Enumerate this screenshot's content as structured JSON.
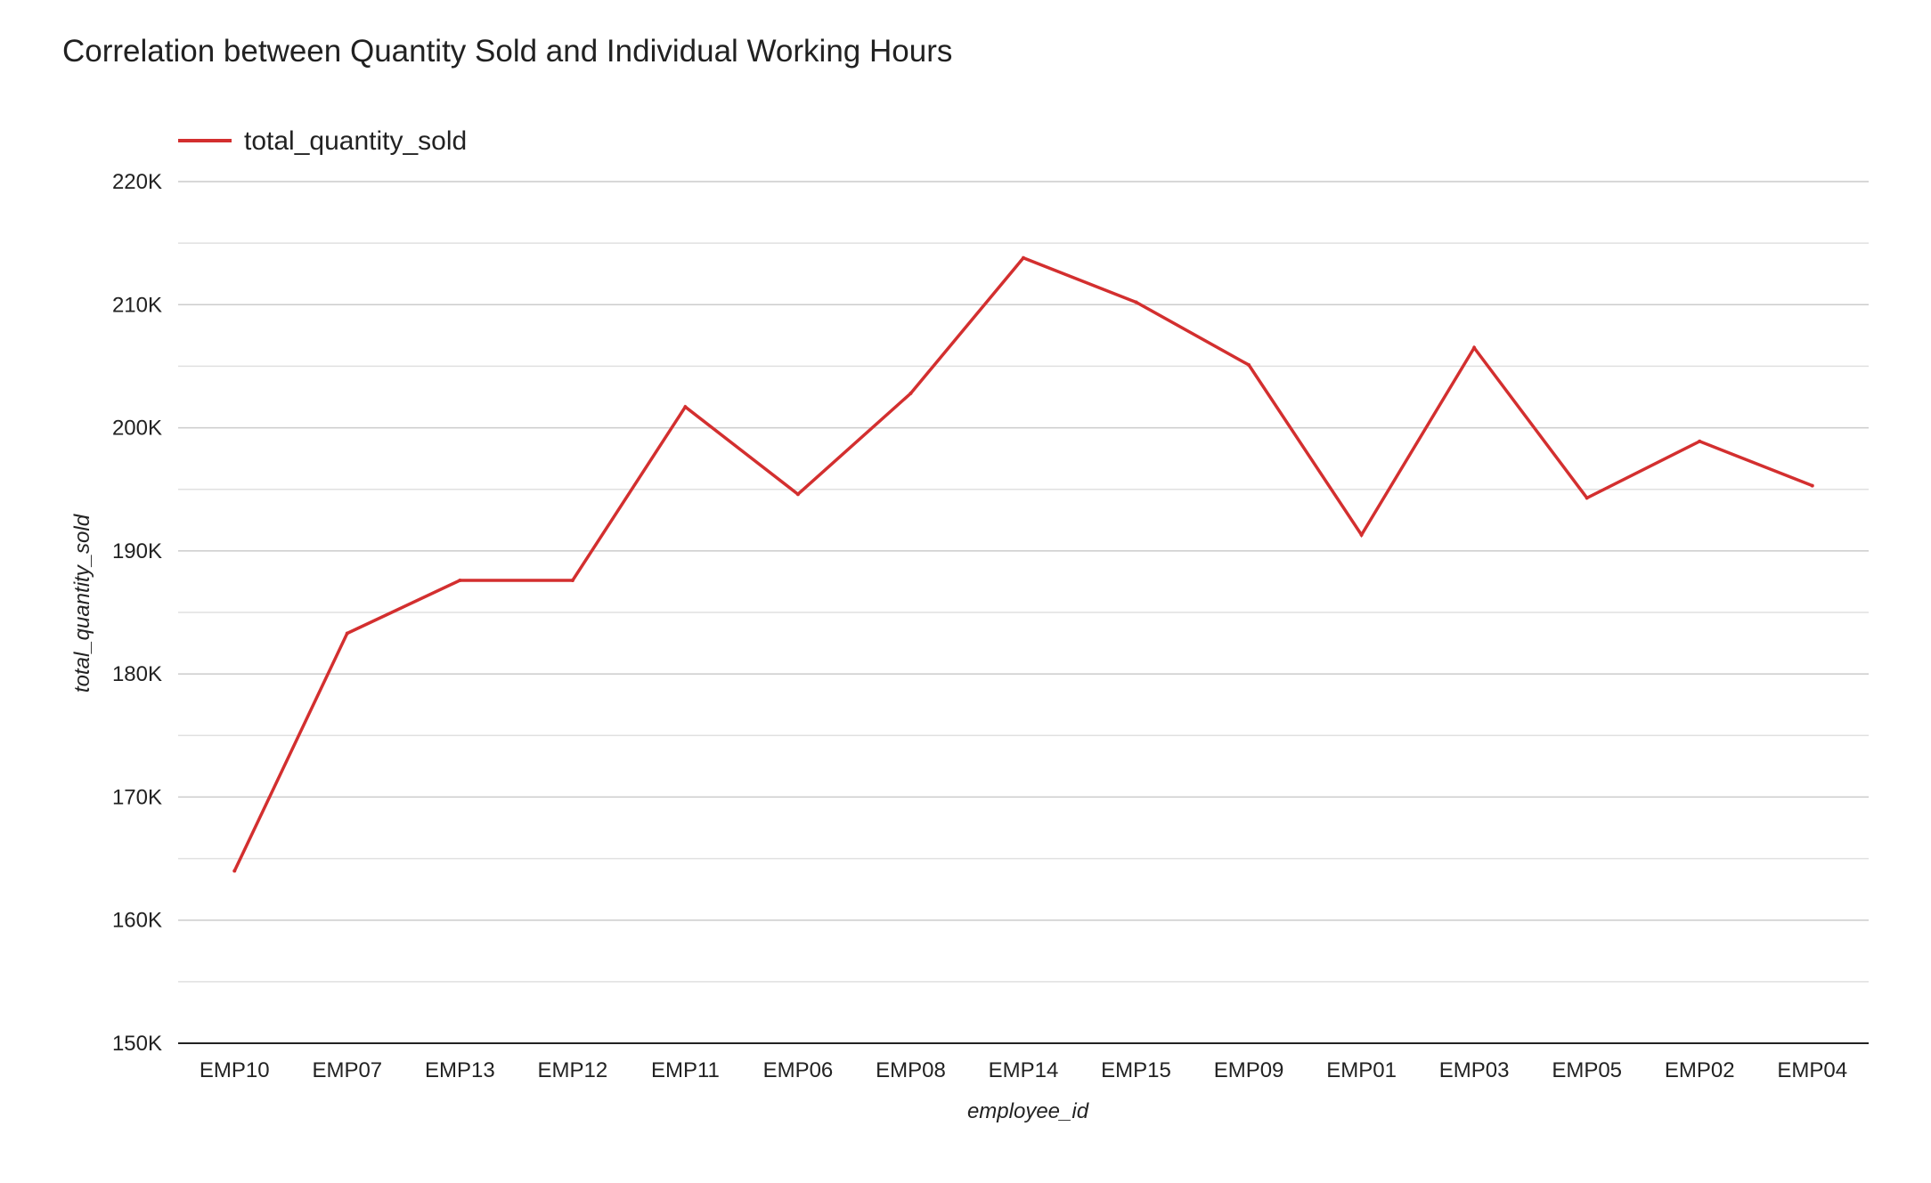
{
  "chart_data": {
    "type": "line",
    "title": "Correlation between Quantity Sold and Individual Working Hours",
    "xlabel": "employee_id",
    "ylabel": "total_quantity_sold",
    "categories": [
      "EMP10",
      "EMP07",
      "EMP13",
      "EMP12",
      "EMP11",
      "EMP06",
      "EMP08",
      "EMP14",
      "EMP15",
      "EMP09",
      "EMP01",
      "EMP03",
      "EMP05",
      "EMP02",
      "EMP04"
    ],
    "series": [
      {
        "name": "total_quantity_sold",
        "color": "#d32f2f",
        "values": [
          164000,
          183300,
          187600,
          187600,
          201700,
          194600,
          202800,
          213800,
          210200,
          205100,
          191300,
          206500,
          194300,
          198900,
          195300
        ]
      }
    ],
    "ylim": [
      150000,
      220000
    ],
    "yticks": [
      150000,
      160000,
      170000,
      180000,
      190000,
      200000,
      210000,
      220000
    ],
    "ytick_labels": [
      "150K",
      "160K",
      "170K",
      "180K",
      "190K",
      "200K",
      "210K",
      "220K"
    ],
    "grid": true,
    "minor_grid": true,
    "legend_position": "top-left"
  }
}
